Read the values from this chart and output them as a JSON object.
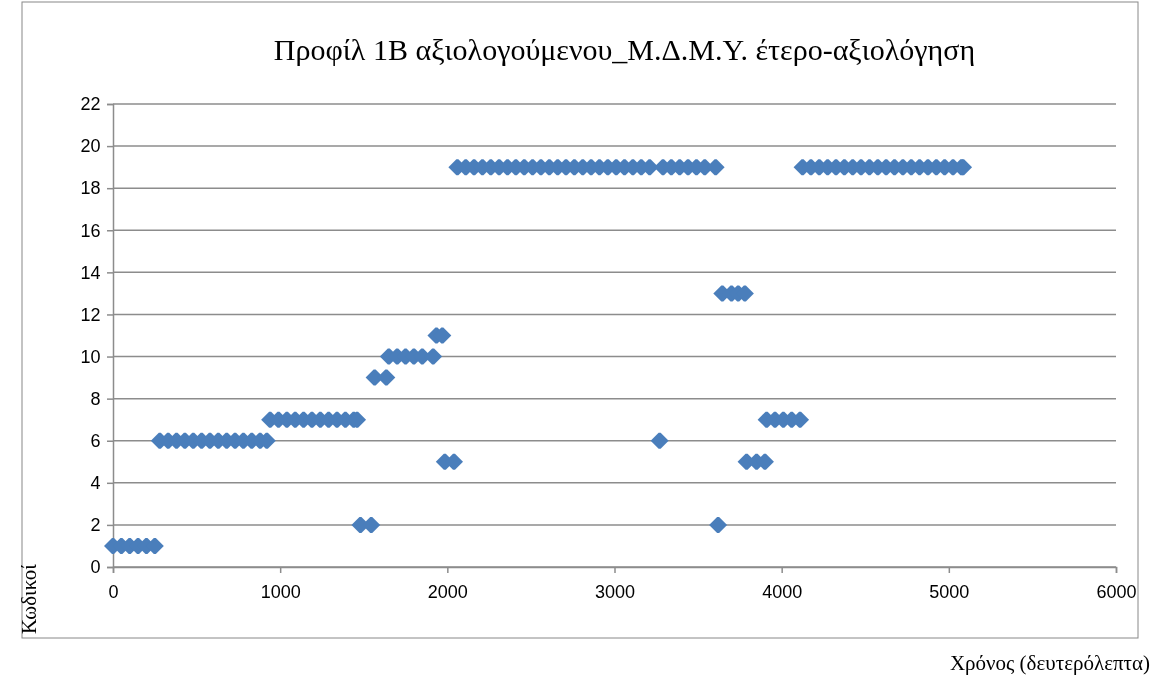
{
  "chart_data": {
    "type": "scatter",
    "title": "Προφίλ 1Β αξιολογούμενου_Μ.Δ.Μ.Υ. έτερο-αξιολόγηση",
    "xlabel": "Χρόνος (δευτερόλεπτα)",
    "ylabel": "Κωδικοί",
    "xlim": [
      0,
      6000
    ],
    "xticks": [
      0,
      1000,
      2000,
      3000,
      4000,
      5000,
      6000
    ],
    "ylim": [
      0,
      22
    ],
    "yticks": [
      0,
      2,
      4,
      6,
      8,
      10,
      12,
      14,
      16,
      18,
      20,
      22
    ],
    "grid": "y",
    "marker": "diamond",
    "series": [
      {
        "color": "#4a7ebb",
        "x": [
          0,
          50,
          100,
          150,
          200,
          250,
          280,
          330,
          380,
          430,
          480,
          530,
          580,
          630,
          680,
          730,
          780,
          830,
          880,
          920,
          940,
          990,
          1040,
          1090,
          1140,
          1190,
          1240,
          1290,
          1340,
          1390,
          1440,
          1460,
          1480,
          1545,
          1565,
          1635,
          1650,
          1700,
          1750,
          1800,
          1850,
          1915,
          1935,
          1970,
          1985,
          2040,
          2060,
          2110,
          2160,
          2210,
          2260,
          2310,
          2360,
          2410,
          2460,
          2510,
          2560,
          2610,
          2660,
          2710,
          2760,
          2810,
          2860,
          2910,
          2960,
          3010,
          3060,
          3110,
          3160,
          3210,
          3270,
          3290,
          3340,
          3390,
          3440,
          3490,
          3540,
          3605,
          3620,
          3645,
          3700,
          3740,
          3780,
          3790,
          3850,
          3900,
          3910,
          3960,
          4010,
          4060,
          4110,
          4125,
          4175,
          4225,
          4275,
          4325,
          4375,
          4425,
          4475,
          4525,
          4575,
          4625,
          4675,
          4725,
          4775,
          4825,
          4875,
          4925,
          4975,
          5025,
          5075,
          5085
        ],
        "values": [
          1,
          1,
          1,
          1,
          1,
          1,
          6,
          6,
          6,
          6,
          6,
          6,
          6,
          6,
          6,
          6,
          6,
          6,
          6,
          6,
          7,
          7,
          7,
          7,
          7,
          7,
          7,
          7,
          7,
          7,
          7,
          7,
          2,
          2,
          9,
          9,
          10,
          10,
          10,
          10,
          10,
          10,
          11,
          11,
          5,
          5,
          19,
          19,
          19,
          19,
          19,
          19,
          19,
          19,
          19,
          19,
          19,
          19,
          19,
          19,
          19,
          19,
          19,
          19,
          19,
          19,
          19,
          19,
          19,
          19,
          6,
          19,
          19,
          19,
          19,
          19,
          19,
          19,
          2,
          13,
          13,
          13,
          13,
          5,
          5,
          5,
          7,
          7,
          7,
          7,
          7,
          19,
          19,
          19,
          19,
          19,
          19,
          19,
          19,
          19,
          19,
          19,
          19,
          19,
          19,
          19,
          19,
          19,
          19,
          19,
          19,
          19
        ]
      }
    ]
  }
}
